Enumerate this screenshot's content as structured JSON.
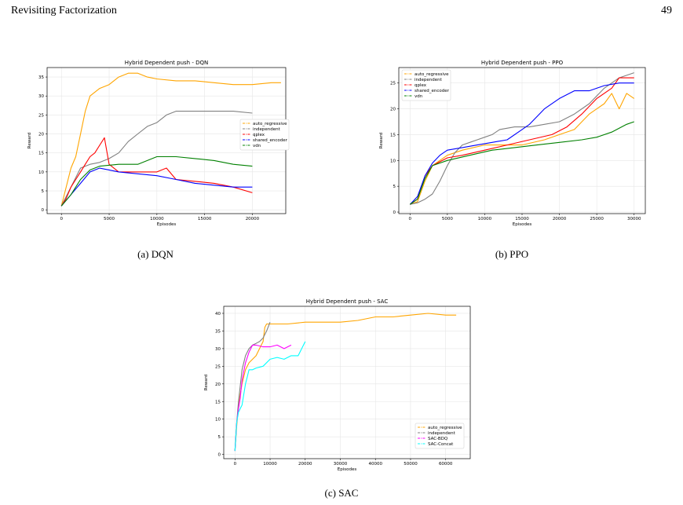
{
  "header": {
    "title": "Revisiting Factorization",
    "page": "49"
  },
  "captions": {
    "a": "(a) DQN",
    "b": "(b) PPO",
    "c": "(c) SAC"
  },
  "colors": {
    "auto_regressive": "#ffa500",
    "independent": "#808080",
    "qplex": "#ff0000",
    "shared_encoder": "#0000ff",
    "vdn": "#008000",
    "sac_bdq": "#ff00ff",
    "sac_concat": "#00ffff"
  },
  "chart_data": [
    {
      "type": "line",
      "title": "Hybrid Dependent push - DQN",
      "xlabel": "Episodes",
      "ylabel": "Reward",
      "xlim": [
        -1500,
        23500
      ],
      "ylim": [
        -1,
        37.5
      ],
      "xticks": [
        0,
        5000,
        10000,
        15000,
        20000
      ],
      "yticks": [
        0,
        5,
        10,
        15,
        20,
        25,
        30,
        35
      ],
      "grid": true,
      "legend": "center-right",
      "series": [
        {
          "name": "auto_regressive",
          "color": "#ffa500",
          "x": [
            0,
            500,
            1000,
            1500,
            2000,
            2500,
            3000,
            4000,
            5000,
            6000,
            7000,
            8000,
            9000,
            10000,
            12000,
            14000,
            16000,
            18000,
            20000,
            22000,
            23000
          ],
          "y": [
            1,
            6,
            11,
            14,
            20,
            26,
            30,
            32,
            33,
            35,
            36,
            36,
            35,
            34.5,
            34,
            34,
            33.5,
            33,
            33,
            33.5,
            33.5
          ]
        },
        {
          "name": "independent",
          "color": "#808080",
          "x": [
            0,
            1000,
            2000,
            3000,
            4000,
            5000,
            6000,
            7000,
            8000,
            9000,
            10000,
            11000,
            12000,
            14000,
            16000,
            18000,
            20000
          ],
          "y": [
            1,
            6,
            11,
            12,
            12.5,
            13.5,
            15,
            18,
            20,
            22,
            23,
            25,
            26,
            26,
            26,
            26,
            25.5
          ]
        },
        {
          "name": "qplex",
          "color": "#ff0000",
          "x": [
            0,
            500,
            1000,
            1500,
            2000,
            2500,
            3000,
            3500,
            4000,
            4500,
            5000,
            6000,
            8000,
            10000,
            11000,
            12000,
            14000,
            16000,
            18000,
            20000
          ],
          "y": [
            1,
            3,
            6,
            8,
            10,
            12,
            14,
            15,
            17,
            19,
            12,
            10,
            10,
            10,
            11,
            8,
            7.5,
            7,
            6,
            4.5
          ]
        },
        {
          "name": "shared_encoder",
          "color": "#0000ff",
          "x": [
            0,
            1000,
            2000,
            3000,
            4000,
            5000,
            6000,
            8000,
            10000,
            12000,
            14000,
            16000,
            18000,
            20000
          ],
          "y": [
            1,
            4,
            7,
            10,
            11,
            10.5,
            10,
            9.5,
            9,
            8,
            7,
            6.5,
            6,
            6
          ]
        },
        {
          "name": "vdn",
          "color": "#008000",
          "x": [
            0,
            1000,
            2000,
            3000,
            4000,
            6000,
            8000,
            10000,
            12000,
            14000,
            16000,
            18000,
            20000
          ],
          "y": [
            1,
            4,
            8,
            10.5,
            11.5,
            12,
            12,
            14,
            14,
            13.5,
            13,
            12,
            11.5
          ]
        }
      ]
    },
    {
      "type": "line",
      "title": "Hybrid Dependent push - PPO",
      "xlabel": "Episodes",
      "ylabel": "Reward",
      "xlim": [
        -1500,
        31500
      ],
      "ylim": [
        -0.3,
        28
      ],
      "xticks": [
        0,
        5000,
        10000,
        15000,
        20000,
        25000,
        30000
      ],
      "yticks": [
        0,
        5,
        10,
        15,
        20,
        25
      ],
      "grid": true,
      "legend": "top-left",
      "series": [
        {
          "name": "auto_regressive",
          "color": "#ffa500",
          "x": [
            0,
            1000,
            2000,
            3000,
            5000,
            7000,
            10000,
            13000,
            15000,
            18000,
            20000,
            22000,
            24000,
            26000,
            27000,
            28000,
            29000,
            30000
          ],
          "y": [
            1.5,
            2,
            6,
            9,
            11,
            12,
            13,
            13,
            13,
            14,
            15,
            16,
            19,
            21,
            23,
            20,
            23,
            22
          ]
        },
        {
          "name": "independent",
          "color": "#808080",
          "x": [
            0,
            1000,
            2000,
            3000,
            4000,
            5000,
            6000,
            7000,
            8000,
            9000,
            10000,
            11000,
            12000,
            14000,
            16000,
            18000,
            20000,
            22000,
            24000,
            26000,
            28000,
            30000
          ],
          "y": [
            1.5,
            1.8,
            2.5,
            3.5,
            6,
            9,
            11.5,
            13,
            13.5,
            14,
            14.5,
            15,
            16,
            16.5,
            16.5,
            17,
            17.5,
            19,
            21,
            24,
            26,
            27
          ]
        },
        {
          "name": "qplex",
          "color": "#ff0000",
          "x": [
            0,
            1000,
            2000,
            3000,
            5000,
            7000,
            10000,
            13000,
            16000,
            19000,
            21000,
            23000,
            25000,
            27000,
            28000,
            30000
          ],
          "y": [
            1.5,
            2.5,
            7,
            9,
            10.5,
            11,
            12,
            13,
            14,
            15,
            16.5,
            19,
            22,
            24,
            26,
            26
          ]
        },
        {
          "name": "shared_encoder",
          "color": "#0000ff",
          "x": [
            0,
            1000,
            2000,
            3000,
            4000,
            5000,
            7000,
            9000,
            11000,
            13000,
            15000,
            16000,
            18000,
            20000,
            22000,
            24000,
            26000,
            28000,
            30000
          ],
          "y": [
            1.5,
            3,
            7,
            9.5,
            11,
            12,
            12.5,
            13,
            13.5,
            14,
            16,
            17,
            20,
            22,
            23.5,
            23.5,
            24.5,
            25,
            25
          ]
        },
        {
          "name": "vdn",
          "color": "#008000",
          "x": [
            0,
            1000,
            2000,
            3000,
            5000,
            8000,
            11000,
            14000,
            17000,
            20000,
            23000,
            25000,
            27000,
            29000,
            30000
          ],
          "y": [
            1.5,
            2.5,
            6.5,
            9,
            10,
            11,
            12,
            12.5,
            13,
            13.5,
            14,
            14.5,
            15.5,
            17,
            17.5
          ]
        }
      ]
    },
    {
      "type": "line",
      "title": "Hybrid Dependent push - SAC",
      "xlabel": "Episodes",
      "ylabel": "Reward",
      "xlim": [
        -3200,
        67000
      ],
      "ylim": [
        -1.2,
        42
      ],
      "xticks": [
        0,
        10000,
        20000,
        30000,
        40000,
        50000,
        60000
      ],
      "yticks": [
        0,
        5,
        10,
        15,
        20,
        25,
        30,
        35,
        40
      ],
      "grid": true,
      "legend": "bottom-right",
      "series": [
        {
          "name": "auto_regressive",
          "color": "#ffa500",
          "x": [
            0,
            500,
            1000,
            2000,
            3000,
            4000,
            5000,
            6000,
            7000,
            8000,
            8500,
            9000,
            10000,
            15000,
            20000,
            25000,
            30000,
            35000,
            40000,
            45000,
            50000,
            55000,
            60000,
            63000
          ],
          "y": [
            1,
            8,
            14,
            20,
            24,
            26,
            27,
            28,
            30,
            32,
            36,
            37,
            37,
            37,
            37.5,
            37.5,
            37.5,
            38,
            39,
            39,
            39.5,
            40,
            39.5,
            39.5
          ]
        },
        {
          "name": "independent",
          "color": "#808080",
          "x": [
            0,
            500,
            1000,
            2000,
            3000,
            4000,
            5000,
            6000,
            7000,
            8000,
            9000,
            10000
          ],
          "y": [
            1,
            9,
            15,
            24,
            28,
            30,
            31,
            31.5,
            32,
            33,
            35,
            37.5
          ]
        },
        {
          "name": "SAC-BDQ",
          "color": "#ff00ff",
          "x": [
            0,
            500,
            1000,
            1500,
            2000,
            3000,
            4000,
            5000,
            6000,
            8000,
            10000,
            12000,
            14000,
            16000
          ],
          "y": [
            1,
            9,
            13,
            16,
            21,
            26,
            29,
            31,
            31,
            30.5,
            30.5,
            31,
            30,
            31
          ]
        },
        {
          "name": "SAC-Concat",
          "color": "#00ffff",
          "x": [
            0,
            500,
            1000,
            1500,
            2000,
            2500,
            3000,
            3500,
            4000,
            5000,
            6000,
            8000,
            10000,
            12000,
            14000,
            16000,
            18000,
            19000,
            20000
          ],
          "y": [
            1,
            9,
            12,
            13,
            14,
            17,
            20,
            22,
            24,
            24,
            24.5,
            25,
            27,
            27.5,
            27,
            28,
            28,
            30,
            32
          ]
        }
      ]
    }
  ]
}
